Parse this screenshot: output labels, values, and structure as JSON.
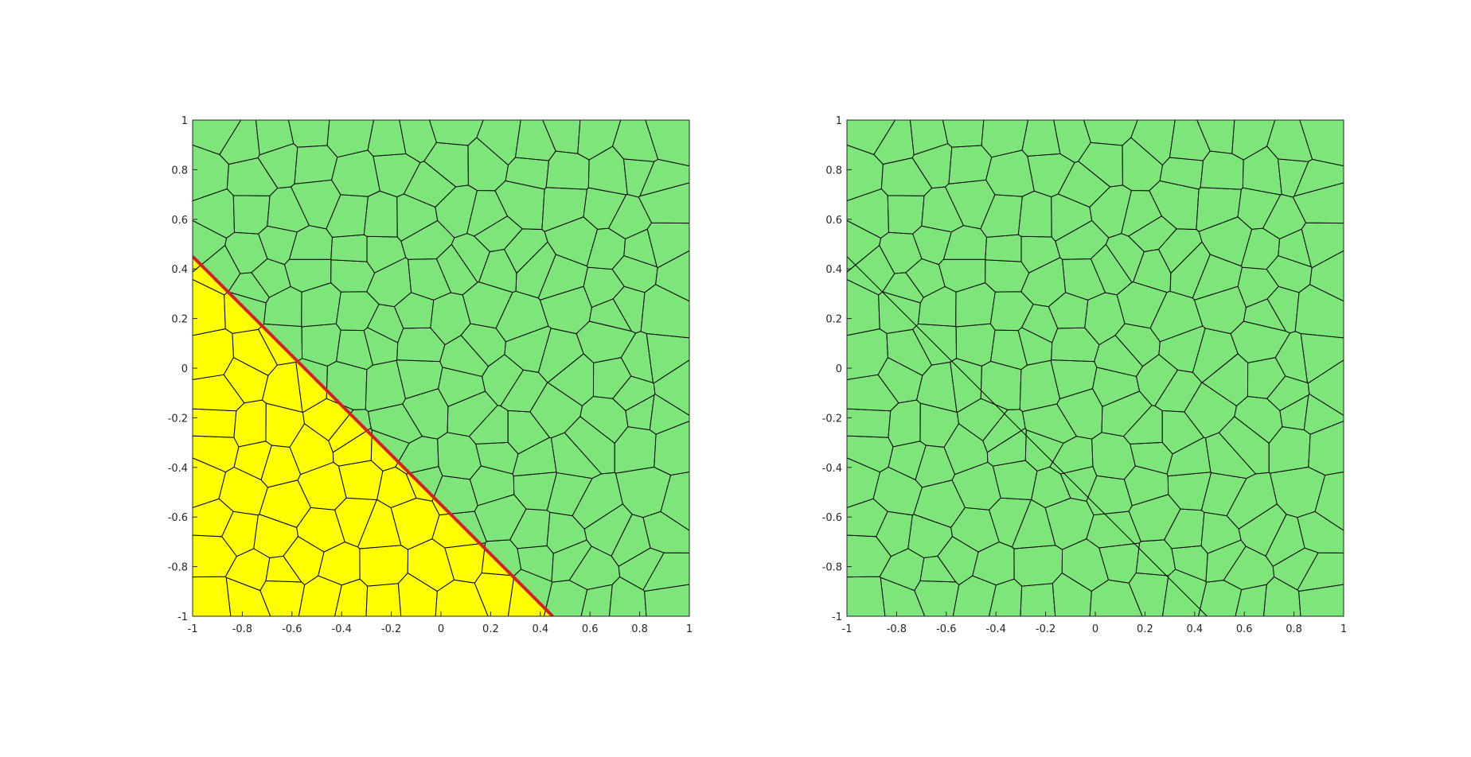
{
  "chart_data": [
    {
      "type": "voronoi-mesh",
      "title": "",
      "xlabel": "",
      "ylabel": "",
      "xlim": [
        -1,
        1
      ],
      "ylim": [
        -1,
        1
      ],
      "xticks": [
        "-1",
        "-0.8",
        "-0.6",
        "-0.4",
        "-0.2",
        "0",
        "0.2",
        "0.4",
        "0.6",
        "0.8",
        "1"
      ],
      "yticks": [
        "-1",
        "-0.8",
        "-0.6",
        "-0.4",
        "-0.2",
        "0",
        "0.2",
        "0.4",
        "0.6",
        "0.8",
        "1"
      ],
      "grid": false,
      "cut_line": {
        "x": [
          -1,
          0.45
        ],
        "y": [
          0.45,
          -1
        ],
        "color": "#d42020"
      },
      "region_below_line_color": "#ffff00",
      "region_above_line_color": "#7ee57a",
      "edge_color": "#000000"
    },
    {
      "type": "voronoi-mesh",
      "title": "",
      "xlabel": "",
      "ylabel": "",
      "xlim": [
        -1,
        1
      ],
      "ylim": [
        -1,
        1
      ],
      "xticks": [
        "-1",
        "-0.8",
        "-0.6",
        "-0.4",
        "-0.2",
        "0",
        "0.2",
        "0.4",
        "0.6",
        "0.8",
        "1"
      ],
      "yticks": [
        "-1",
        "-0.8",
        "-0.6",
        "-0.4",
        "-0.2",
        "0",
        "0.2",
        "0.4",
        "0.6",
        "0.8",
        "1"
      ],
      "grid": false,
      "cut_line": {
        "x": [
          -1,
          0.45
        ],
        "y": [
          0.45,
          -1
        ],
        "color": "#000000"
      },
      "fill_color": "#7ee57a",
      "edge_color": "#000000"
    }
  ]
}
